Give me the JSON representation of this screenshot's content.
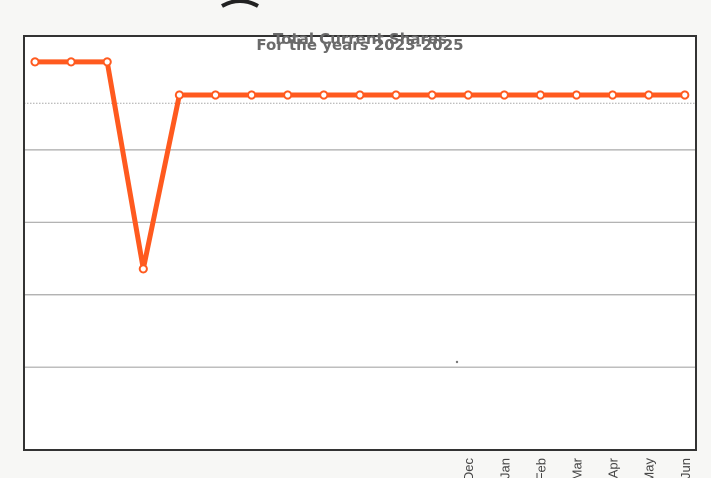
{
  "chart_data": {
    "type": "line",
    "title": "Total Current Shares",
    "subtitle": "For the years 2023-2025",
    "xlabel": "",
    "ylabel": "",
    "x_tick_labels_visible": [
      "Dec",
      "Jan",
      "Feb",
      "Mar",
      "Apr",
      "May",
      "Jun"
    ],
    "n_points": 19,
    "series": [
      {
        "values": [
          2.95,
          2.95,
          2.95,
          0.95,
          2.63,
          2.63,
          2.63,
          2.63,
          2.63,
          2.63,
          2.63,
          2.63,
          2.63,
          2.63,
          2.63,
          2.63,
          2.63,
          2.63,
          2.63
        ],
        "color": "#ff5a1f",
        "marker": "hollow-circle"
      }
    ],
    "ylim": [
      -0.8,
      3.2
    ],
    "gridlines_y": [
      0,
      0.7,
      1.4,
      2.1,
      2.55
    ],
    "grid": true,
    "legend": "none"
  },
  "colors": {
    "line": "#ff5a1f",
    "marker_fill": "#ffffff",
    "frame": "#333333",
    "grid": "#a8a8a8",
    "plot_bg": "#ffffff",
    "page_bg": "#f7f7f5"
  }
}
